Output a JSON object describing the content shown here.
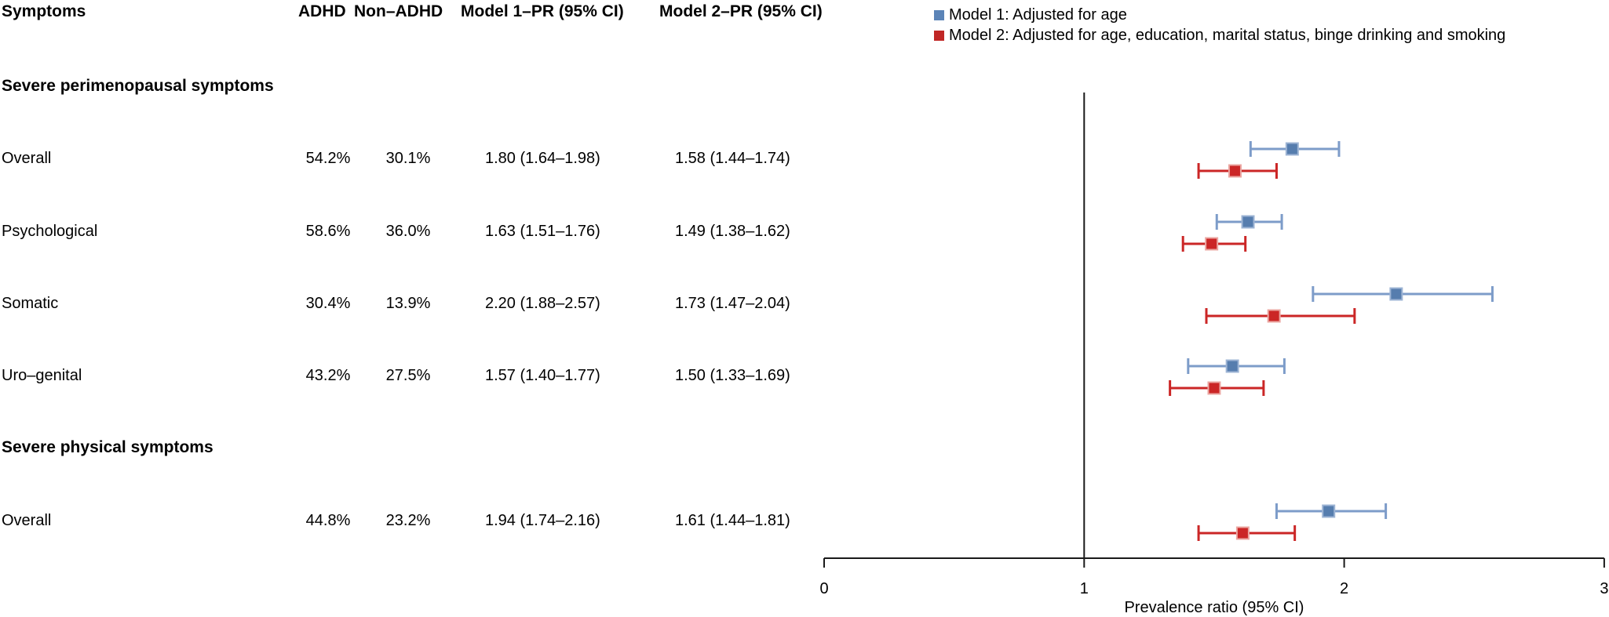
{
  "figure": {
    "header": {
      "symptoms": "Symptoms",
      "adhd": "ADHD",
      "non_adhd": "Non–ADHD",
      "model1": "Model 1–PR (95% CI)",
      "model2": "Model 2–PR (95% CI)"
    },
    "legend": {
      "items": [
        {
          "label": "Model 1: Adjusted for age",
          "color": "#5b84b7"
        },
        {
          "label": "Model 2: Adjusted for age, education, marital status, binge drinking and smoking",
          "color": "#c02726"
        }
      ]
    }
  },
  "table": {
    "sections": [
      {
        "title": "Severe perimenopausal symptoms",
        "rows": [
          {
            "label": "Overall",
            "adhd": "54.2%",
            "non_adhd": "30.1%",
            "model1": "1.80 (1.64–1.98)",
            "model2": "1.58 (1.44–1.74)"
          },
          {
            "label": "Psychological",
            "adhd": "58.6%",
            "non_adhd": "36.0%",
            "model1": "1.63 (1.51–1.76)",
            "model2": "1.49 (1.38–1.62)"
          },
          {
            "label": "Somatic",
            "adhd": "30.4%",
            "non_adhd": "13.9%",
            "model1": "2.20 (1.88–2.57)",
            "model2": "1.73 (1.47–2.04)"
          },
          {
            "label": "Uro–genital",
            "adhd": "43.2%",
            "non_adhd": "27.5%",
            "model1": "1.57 (1.40–1.77)",
            "model2": "1.50 (1.33–1.69)"
          }
        ]
      },
      {
        "title": "Severe physical symptoms",
        "rows": [
          {
            "label": "Overall",
            "adhd": "44.8%",
            "non_adhd": "23.2%",
            "model1": "1.94 (1.74–2.16)",
            "model2": "1.61 (1.44–1.81)"
          }
        ]
      }
    ]
  },
  "chart_data": {
    "type": "forest",
    "xlabel": "Prevalence ratio (95% CI)",
    "xlim": [
      0,
      3
    ],
    "xticks": [
      "0",
      "1",
      "2",
      "3"
    ],
    "reference_line": 1,
    "legend_position": "top-right",
    "series_meta": [
      {
        "key": "model1",
        "name": "Model 1: Adjusted for age",
        "square_fill": "#567dae",
        "square_edge": "#9db4d4",
        "line_color": "#7d9cc9"
      },
      {
        "key": "model2",
        "name": "Model 2: Adjusted for age, education, marital status, binge drinking and smoking",
        "square_fill": "#cb2626",
        "square_edge": "#eba7a2",
        "line_color": "#cb2626"
      }
    ],
    "rows": [
      {
        "section": "Severe perimenopausal symptoms",
        "label": "Overall",
        "model1": {
          "est": 1.8,
          "lo": 1.64,
          "hi": 1.98
        },
        "model2": {
          "est": 1.58,
          "lo": 1.44,
          "hi": 1.74
        }
      },
      {
        "section": "Severe perimenopausal symptoms",
        "label": "Psychological",
        "model1": {
          "est": 1.63,
          "lo": 1.51,
          "hi": 1.76
        },
        "model2": {
          "est": 1.49,
          "lo": 1.38,
          "hi": 1.62
        }
      },
      {
        "section": "Severe perimenopausal symptoms",
        "label": "Somatic",
        "model1": {
          "est": 2.2,
          "lo": 1.88,
          "hi": 2.57
        },
        "model2": {
          "est": 1.73,
          "lo": 1.47,
          "hi": 2.04
        }
      },
      {
        "section": "Severe perimenopausal symptoms",
        "label": "Uro–genital",
        "model1": {
          "est": 1.57,
          "lo": 1.4,
          "hi": 1.77
        },
        "model2": {
          "est": 1.5,
          "lo": 1.33,
          "hi": 1.69
        }
      },
      {
        "section": "Severe physical symptoms",
        "label": "Overall",
        "model1": {
          "est": 1.94,
          "lo": 1.74,
          "hi": 2.16
        },
        "model2": {
          "est": 1.61,
          "lo": 1.44,
          "hi": 1.81
        }
      }
    ]
  }
}
